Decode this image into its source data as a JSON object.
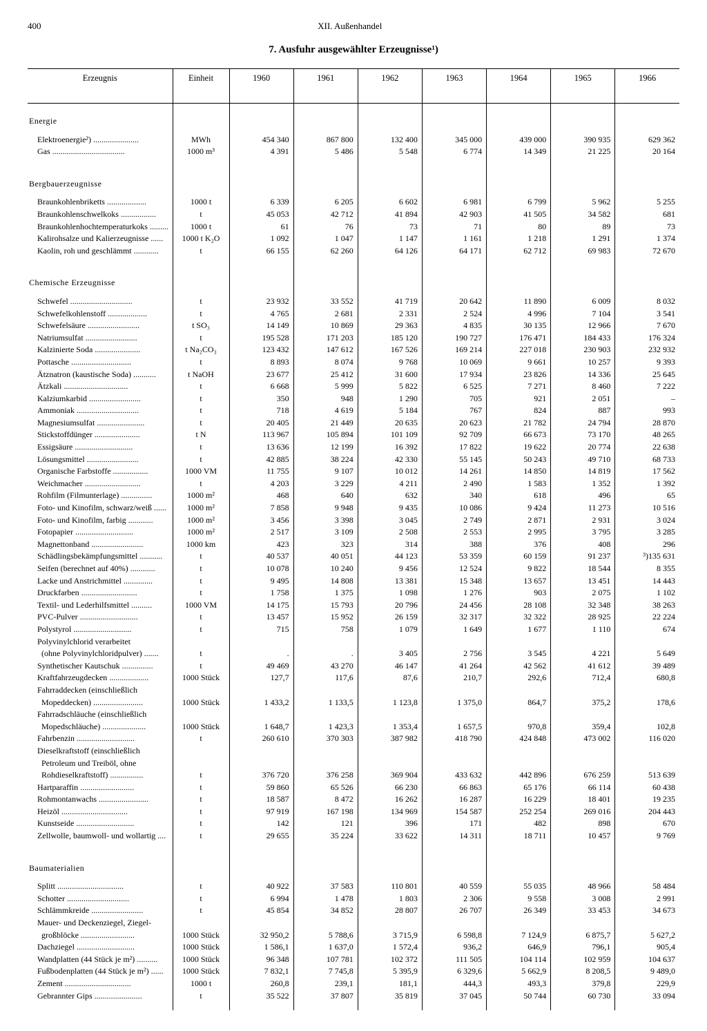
{
  "page_number": "400",
  "running_head": "XII. Außenhandel",
  "title": "7. Ausfuhr ausgewählter Erzeugnisse¹)",
  "columns": [
    "Erzeugnis",
    "Einheit",
    "1960",
    "1961",
    "1962",
    "1963",
    "1964",
    "1965",
    "1966"
  ],
  "groups": [
    {
      "title": "Energie",
      "rows": [
        {
          "name": "Elektroenergie²)",
          "unit": "MWh",
          "v": [
            "454 340",
            "867 800",
            "132 400",
            "345 000",
            "439 000",
            "390 935",
            "629 362"
          ]
        },
        {
          "name": "Gas",
          "unit": "1000 m³",
          "v": [
            "4 391",
            "5 486",
            "5 548",
            "6 774",
            "14 349",
            "21 225",
            "20 164"
          ]
        }
      ]
    },
    {
      "title": "Bergbauerzeugnisse",
      "rows": [
        {
          "name": "Braunkohlenbriketts",
          "unit": "1000 t",
          "v": [
            "6 339",
            "6 205",
            "6 602",
            "6 981",
            "6 799",
            "5 962",
            "5 255"
          ]
        },
        {
          "name": "Braunkohlenschwelkoks",
          "unit": "t",
          "v": [
            "45 053",
            "42 712",
            "41 894",
            "42 903",
            "41 505",
            "34 582",
            "681"
          ]
        },
        {
          "name": "Braunkohlenhochtemperaturkoks",
          "unit": "1000 t",
          "v": [
            "61",
            "76",
            "73",
            "71",
            "80",
            "89",
            "73"
          ]
        },
        {
          "name": "Kalirohsalze und Kalierzeugnisse",
          "unit": "1000 t K₂O",
          "v": [
            "1 092",
            "1 047",
            "1 147",
            "1 161",
            "1 218",
            "1 291",
            "1 374"
          ]
        },
        {
          "name": "Kaolin, roh und geschlämmt",
          "unit": "t",
          "v": [
            "66 155",
            "62 260",
            "64 126",
            "64 171",
            "62 712",
            "69 983",
            "72 670"
          ]
        }
      ]
    },
    {
      "title": "Chemische Erzeugnisse",
      "rows": [
        {
          "name": "Schwefel",
          "unit": "t",
          "v": [
            "23 932",
            "33 552",
            "41 719",
            "20 642",
            "11 890",
            "6 009",
            "8 032"
          ]
        },
        {
          "name": "Schwefelkohlenstoff",
          "unit": "t",
          "v": [
            "4 765",
            "2 681",
            "2 331",
            "2 524",
            "4 996",
            "7 104",
            "3 541"
          ]
        },
        {
          "name": "Schwefelsäure",
          "unit": "t SO₃",
          "v": [
            "14 149",
            "10 869",
            "29 363",
            "4 835",
            "30 135",
            "12 966",
            "7 670"
          ]
        },
        {
          "name": "Natriumsulfat",
          "unit": "t",
          "v": [
            "195 528",
            "171 203",
            "185 120",
            "190 727",
            "176 471",
            "184 433",
            "176 324"
          ]
        },
        {
          "name": "Kalzinierte Soda",
          "unit": "t Na₂CO₃",
          "v": [
            "123 432",
            "147 612",
            "167 526",
            "169 214",
            "227 018",
            "230 903",
            "232 932"
          ]
        },
        {
          "name": "Pottasche",
          "unit": "t",
          "v": [
            "8 893",
            "8 074",
            "9 768",
            "10 069",
            "9 661",
            "10 257",
            "9 393"
          ]
        },
        {
          "name": "Ätznatron (kaustische Soda)",
          "unit": "t NaOH",
          "v": [
            "23 677",
            "25 412",
            "31 600",
            "17 934",
            "23 826",
            "14 336",
            "25 645"
          ]
        },
        {
          "name": "Ätzkali",
          "unit": "t",
          "v": [
            "6 668",
            "5 999",
            "5 822",
            "6 525",
            "7 271",
            "8 460",
            "7 222"
          ]
        },
        {
          "name": "Kalziumkarbid",
          "unit": "t",
          "v": [
            "350",
            "948",
            "1 290",
            "705",
            "921",
            "2 051",
            "–"
          ]
        },
        {
          "name": "Ammoniak",
          "unit": "t",
          "v": [
            "718",
            "4 619",
            "5 184",
            "767",
            "824",
            "887",
            "993"
          ]
        },
        {
          "name": "Magnesiumsulfat",
          "unit": "t",
          "v": [
            "20 405",
            "21 449",
            "20 635",
            "20 623",
            "21 782",
            "24 794",
            "28 870"
          ]
        },
        {
          "name": "Stickstoffdünger",
          "unit": "t N",
          "v": [
            "113 967",
            "105 894",
            "101 109",
            "92 709",
            "66 673",
            "73 170",
            "48 265"
          ]
        },
        {
          "name": "Essigsäure",
          "unit": "t",
          "v": [
            "13 636",
            "12 199",
            "16 392",
            "17 822",
            "19 622",
            "20 774",
            "22 638"
          ]
        },
        {
          "name": "Lösungsmittel",
          "unit": "t",
          "v": [
            "42 885",
            "38 224",
            "42 330",
            "55 145",
            "50 243",
            "49 710",
            "68 733"
          ]
        },
        {
          "name": "Organische Farbstoffe",
          "unit": "1000 VM",
          "v": [
            "11 755",
            "9 107",
            "10 012",
            "14 261",
            "14 850",
            "14 819",
            "17 562"
          ]
        },
        {
          "name": "Weichmacher",
          "unit": "t",
          "v": [
            "4 203",
            "3 229",
            "4 211",
            "2 490",
            "1 583",
            "1 352",
            "1 392"
          ]
        },
        {
          "name": "Rohfilm (Filmunterlage)",
          "unit": "1000 m²",
          "v": [
            "468",
            "640",
            "632",
            "340",
            "618",
            "496",
            "65"
          ]
        },
        {
          "name": "Foto- und Kinofilm, schwarz/weiß",
          "unit": "1000 m²",
          "v": [
            "7 858",
            "9 948",
            "9 435",
            "10 086",
            "9 424",
            "11 273",
            "10 516"
          ]
        },
        {
          "name": "Foto- und Kinofilm, farbig",
          "unit": "1000 m²",
          "v": [
            "3 456",
            "3 398",
            "3 045",
            "2 749",
            "2 871",
            "2 931",
            "3 024"
          ]
        },
        {
          "name": "Fotopapier",
          "unit": "1000 m²",
          "v": [
            "2 517",
            "3 109",
            "2 508",
            "2 553",
            "2 995",
            "3 795",
            "3 285"
          ]
        },
        {
          "name": "Magnettonband",
          "unit": "1000 km",
          "v": [
            "423",
            "323",
            "314",
            "388",
            "376",
            "408",
            "296"
          ]
        },
        {
          "name": "Schädlingsbekämpfungsmittel",
          "unit": "t",
          "v": [
            "40 537",
            "40 051",
            "44 123",
            "53 359",
            "60 159",
            "91 237",
            "³)135 631"
          ]
        },
        {
          "name": "Seifen (berechnet auf 40%)",
          "unit": "t",
          "v": [
            "10 078",
            "10 240",
            "9 456",
            "12 524",
            "9 822",
            "18 544",
            "8 355"
          ]
        },
        {
          "name": "Lacke und Anstrichmittel",
          "unit": "t",
          "v": [
            "9 495",
            "14 808",
            "13 381",
            "15 348",
            "13 657",
            "13 451",
            "14 443"
          ]
        },
        {
          "name": "Druckfarben",
          "unit": "t",
          "v": [
            "1 758",
            "1 375",
            "1 098",
            "1 276",
            "903",
            "2 075",
            "1 102"
          ]
        },
        {
          "name": "Textil- und Lederhilfsmittel",
          "unit": "1000 VM",
          "v": [
            "14 175",
            "15 793",
            "20 796",
            "24 456",
            "28 108",
            "32 348",
            "38 263"
          ]
        },
        {
          "name": "PVC-Pulver",
          "unit": "t",
          "v": [
            "13 457",
            "15 952",
            "26 159",
            "32 317",
            "32 322",
            "28 925",
            "22 224"
          ]
        },
        {
          "name": "Polystyrol",
          "unit": "t",
          "v": [
            "715",
            "758",
            "1 079",
            "1 649",
            "1 677",
            "1 110",
            "674"
          ]
        },
        {
          "name": "Polyvinylchlorid verarbeitet",
          "unit": "",
          "v": [
            "",
            "",
            "",
            "",
            "",
            "",
            ""
          ]
        },
        {
          "name": "  (ohne Polyvinylchloridpulver)",
          "unit": "t",
          "v": [
            ".",
            ".",
            "3 405",
            "2 756",
            "3 545",
            "4 221",
            "5 649"
          ]
        },
        {
          "name": "Synthetischer Kautschuk",
          "unit": "t",
          "v": [
            "49 469",
            "43 270",
            "46 147",
            "41 264",
            "42 562",
            "41 612",
            "39 489"
          ]
        },
        {
          "name": "Kraftfahrzeugdecken",
          "unit": "1000 Stück",
          "v": [
            "127,7",
            "117,6",
            "87,6",
            "210,7",
            "292,6",
            "712,4",
            "680,8"
          ]
        },
        {
          "name": "Fahrraddecken (einschließlich",
          "unit": "",
          "v": [
            "",
            "",
            "",
            "",
            "",
            "",
            ""
          ]
        },
        {
          "name": "  Mopeddecken)",
          "unit": "1000 Stück",
          "v": [
            "1 433,2",
            "1 133,5",
            "1 123,8",
            "1 375,0",
            "864,7",
            "375,2",
            "178,6"
          ]
        },
        {
          "name": "Fahrradschläuche (einschließlich",
          "unit": "",
          "v": [
            "",
            "",
            "",
            "",
            "",
            "",
            ""
          ]
        },
        {
          "name": "  Mopedschläuche)",
          "unit": "1000 Stück",
          "v": [
            "1 648,7",
            "1 423,3",
            "1 353,4",
            "1 657,5",
            "970,8",
            "359,4",
            "102,8"
          ]
        },
        {
          "name": "Fahrbenzin",
          "unit": "t",
          "v": [
            "260 610",
            "370 303",
            "387 982",
            "418 790",
            "424 848",
            "473 002",
            "116 020"
          ]
        },
        {
          "name": "Dieselkraftstoff (einschließlich",
          "unit": "",
          "v": [
            "",
            "",
            "",
            "",
            "",
            "",
            ""
          ]
        },
        {
          "name": "  Petroleum und Treiböl, ohne",
          "unit": "",
          "v": [
            "",
            "",
            "",
            "",
            "",
            "",
            ""
          ]
        },
        {
          "name": "  Rohdieselkraftstoff)",
          "unit": "t",
          "v": [
            "376 720",
            "376 258",
            "369 904",
            "433 632",
            "442 896",
            "676 259",
            "513 639"
          ]
        },
        {
          "name": "Hartparaffin",
          "unit": "t",
          "v": [
            "59 860",
            "65 526",
            "66 230",
            "66 863",
            "65 176",
            "66 114",
            "60 438"
          ]
        },
        {
          "name": "Rohmontanwachs",
          "unit": "t",
          "v": [
            "18 587",
            "8 472",
            "16 262",
            "16 287",
            "16 229",
            "18 401",
            "19 235"
          ]
        },
        {
          "name": "Heizöl",
          "unit": "t",
          "v": [
            "97 919",
            "167 198",
            "134 969",
            "154 587",
            "252 254",
            "269 016",
            "204 443"
          ]
        },
        {
          "name": "Kunstseide",
          "unit": "t",
          "v": [
            "142",
            "121",
            "396",
            "171",
            "482",
            "898",
            "670"
          ]
        },
        {
          "name": "Zellwolle, baumwoll- und wollartig",
          "unit": "t",
          "v": [
            "29 655",
            "35 224",
            "33 622",
            "14 311",
            "18 711",
            "10 457",
            "9 769"
          ]
        }
      ]
    },
    {
      "title": "Baumaterialien",
      "rows": [
        {
          "name": "Splitt",
          "unit": "t",
          "v": [
            "40 922",
            "37 583",
            "110 801",
            "40 559",
            "55 035",
            "48 966",
            "58 484"
          ]
        },
        {
          "name": "Schotter",
          "unit": "t",
          "v": [
            "6 994",
            "1 478",
            "1 803",
            "2 306",
            "9 558",
            "3 008",
            "2 991"
          ]
        },
        {
          "name": "Schlämmkreide",
          "unit": "t",
          "v": [
            "45 854",
            "34 852",
            "28 807",
            "26 707",
            "26 349",
            "33 453",
            "34 673"
          ]
        },
        {
          "name": "Mauer- und Deckenziegel, Ziegel-",
          "unit": "",
          "v": [
            "",
            "",
            "",
            "",
            "",
            "",
            ""
          ]
        },
        {
          "name": "  großblöcke",
          "unit": "1000 Stück",
          "v": [
            "32 950,2",
            "5 788,6",
            "3 715,9",
            "6 598,8",
            "7 124,9",
            "6 875,7",
            "5 627,2"
          ]
        },
        {
          "name": "Dachziegel",
          "unit": "1000 Stück",
          "v": [
            "1 586,1",
            "1 637,0",
            "1 572,4",
            "936,2",
            "646,9",
            "796,1",
            "905,4"
          ]
        },
        {
          "name": "Wandplatten (44 Stück je m²)",
          "unit": "1000 Stück",
          "v": [
            "96 348",
            "107 781",
            "102 372",
            "111 505",
            "104 114",
            "102 959",
            "104 637"
          ]
        },
        {
          "name": "Fußbodenplatten (44 Stück je m²)",
          "unit": "1000 Stück",
          "v": [
            "7 832,1",
            "7 745,8",
            "5 395,9",
            "6 329,6",
            "5 662,9",
            "8 208,5",
            "9 489,0"
          ]
        },
        {
          "name": "Zement",
          "unit": "1000 t",
          "v": [
            "260,8",
            "239,1",
            "181,1",
            "444,3",
            "493,3",
            "379,8",
            "229,9"
          ]
        },
        {
          "name": "Gebrannter Gips",
          "unit": "t",
          "v": [
            "35 522",
            "37 807",
            "35 819",
            "37 045",
            "50 744",
            "60 730",
            "33 094"
          ]
        }
      ]
    }
  ]
}
